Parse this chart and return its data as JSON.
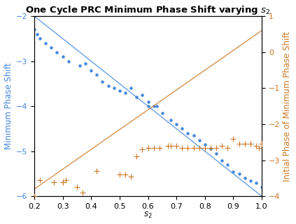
{
  "title": "One Cycle PRC Minimum Phase Shift varying $\\mathbf{s_2}$",
  "xlabel": "$s_2$",
  "ylabel_left": "Minimum Phase Shift",
  "ylabel_right": "Initial Phase of Minimum Phase Shift",
  "xlim": [
    0.2,
    1.0
  ],
  "ylim_left": [
    -6,
    -2
  ],
  "ylim_right": [
    -4,
    1
  ],
  "blue_line_x": [
    0.2,
    1.0
  ],
  "blue_line_y": [
    -2.0,
    -6.0
  ],
  "orange_line_x": [
    0.2,
    1.0
  ],
  "orange_line_y": [
    -3.8,
    0.6
  ],
  "blue_scatter_x": [
    0.2,
    0.21,
    0.22,
    0.24,
    0.26,
    0.28,
    0.3,
    0.32,
    0.36,
    0.38,
    0.4,
    0.42,
    0.44,
    0.46,
    0.48,
    0.5,
    0.52,
    0.54,
    0.56,
    0.58,
    0.6,
    0.6,
    0.62,
    0.63,
    0.65,
    0.68,
    0.7,
    0.72,
    0.74,
    0.76,
    0.78,
    0.8,
    0.82,
    0.84,
    0.86,
    0.88,
    0.9,
    0.92,
    0.94,
    0.96,
    0.98,
    1.0
  ],
  "blue_scatter_y": [
    -2.3,
    -2.4,
    -2.5,
    -2.6,
    -2.7,
    -2.8,
    -2.9,
    -3.0,
    -3.1,
    -3.05,
    -3.2,
    -3.3,
    -3.45,
    -3.55,
    -3.6,
    -3.65,
    -3.7,
    -3.6,
    -3.8,
    -3.75,
    -3.9,
    -4.0,
    -4.0,
    -4.0,
    -4.15,
    -4.3,
    -4.4,
    -4.5,
    -4.6,
    -4.65,
    -4.75,
    -4.85,
    -4.95,
    -5.05,
    -5.2,
    -5.3,
    -5.45,
    -5.5,
    -5.6,
    -5.65,
    -5.7,
    -5.8
  ],
  "orange_scatter_x": [
    0.2,
    0.22,
    0.27,
    0.3,
    0.35,
    0.37,
    0.42,
    0.5,
    0.52,
    0.54,
    0.56,
    0.58,
    0.6,
    0.62,
    0.64,
    0.67,
    0.68,
    0.7,
    0.72,
    0.74,
    0.76,
    0.78,
    0.8,
    0.82,
    0.84,
    0.86,
    0.88,
    0.9,
    0.92,
    0.94,
    0.96,
    0.98,
    0.99,
    1.0,
    0.3,
    0.31
  ],
  "orange_scatter_y": [
    -4.0,
    -3.55,
    -3.6,
    -3.6,
    -3.75,
    -3.9,
    -3.3,
    -3.4,
    -3.4,
    -3.45,
    -2.9,
    -2.7,
    -2.65,
    -2.65,
    -2.65,
    -2.6,
    -2.6,
    -2.6,
    -2.65,
    -2.65,
    -2.65,
    -2.65,
    -2.65,
    -2.65,
    -2.65,
    -2.6,
    -2.65,
    -2.4,
    -2.55,
    -2.55,
    -2.55,
    -2.6,
    -2.65,
    -2.55,
    -3.6,
    -3.55
  ],
  "blue_color": "#4488DD",
  "orange_color": "#CC7722",
  "background_color": "#FFFFFF",
  "title_fontsize": 9.5,
  "axis_fontsize": 8.5,
  "tick_fontsize": 8
}
